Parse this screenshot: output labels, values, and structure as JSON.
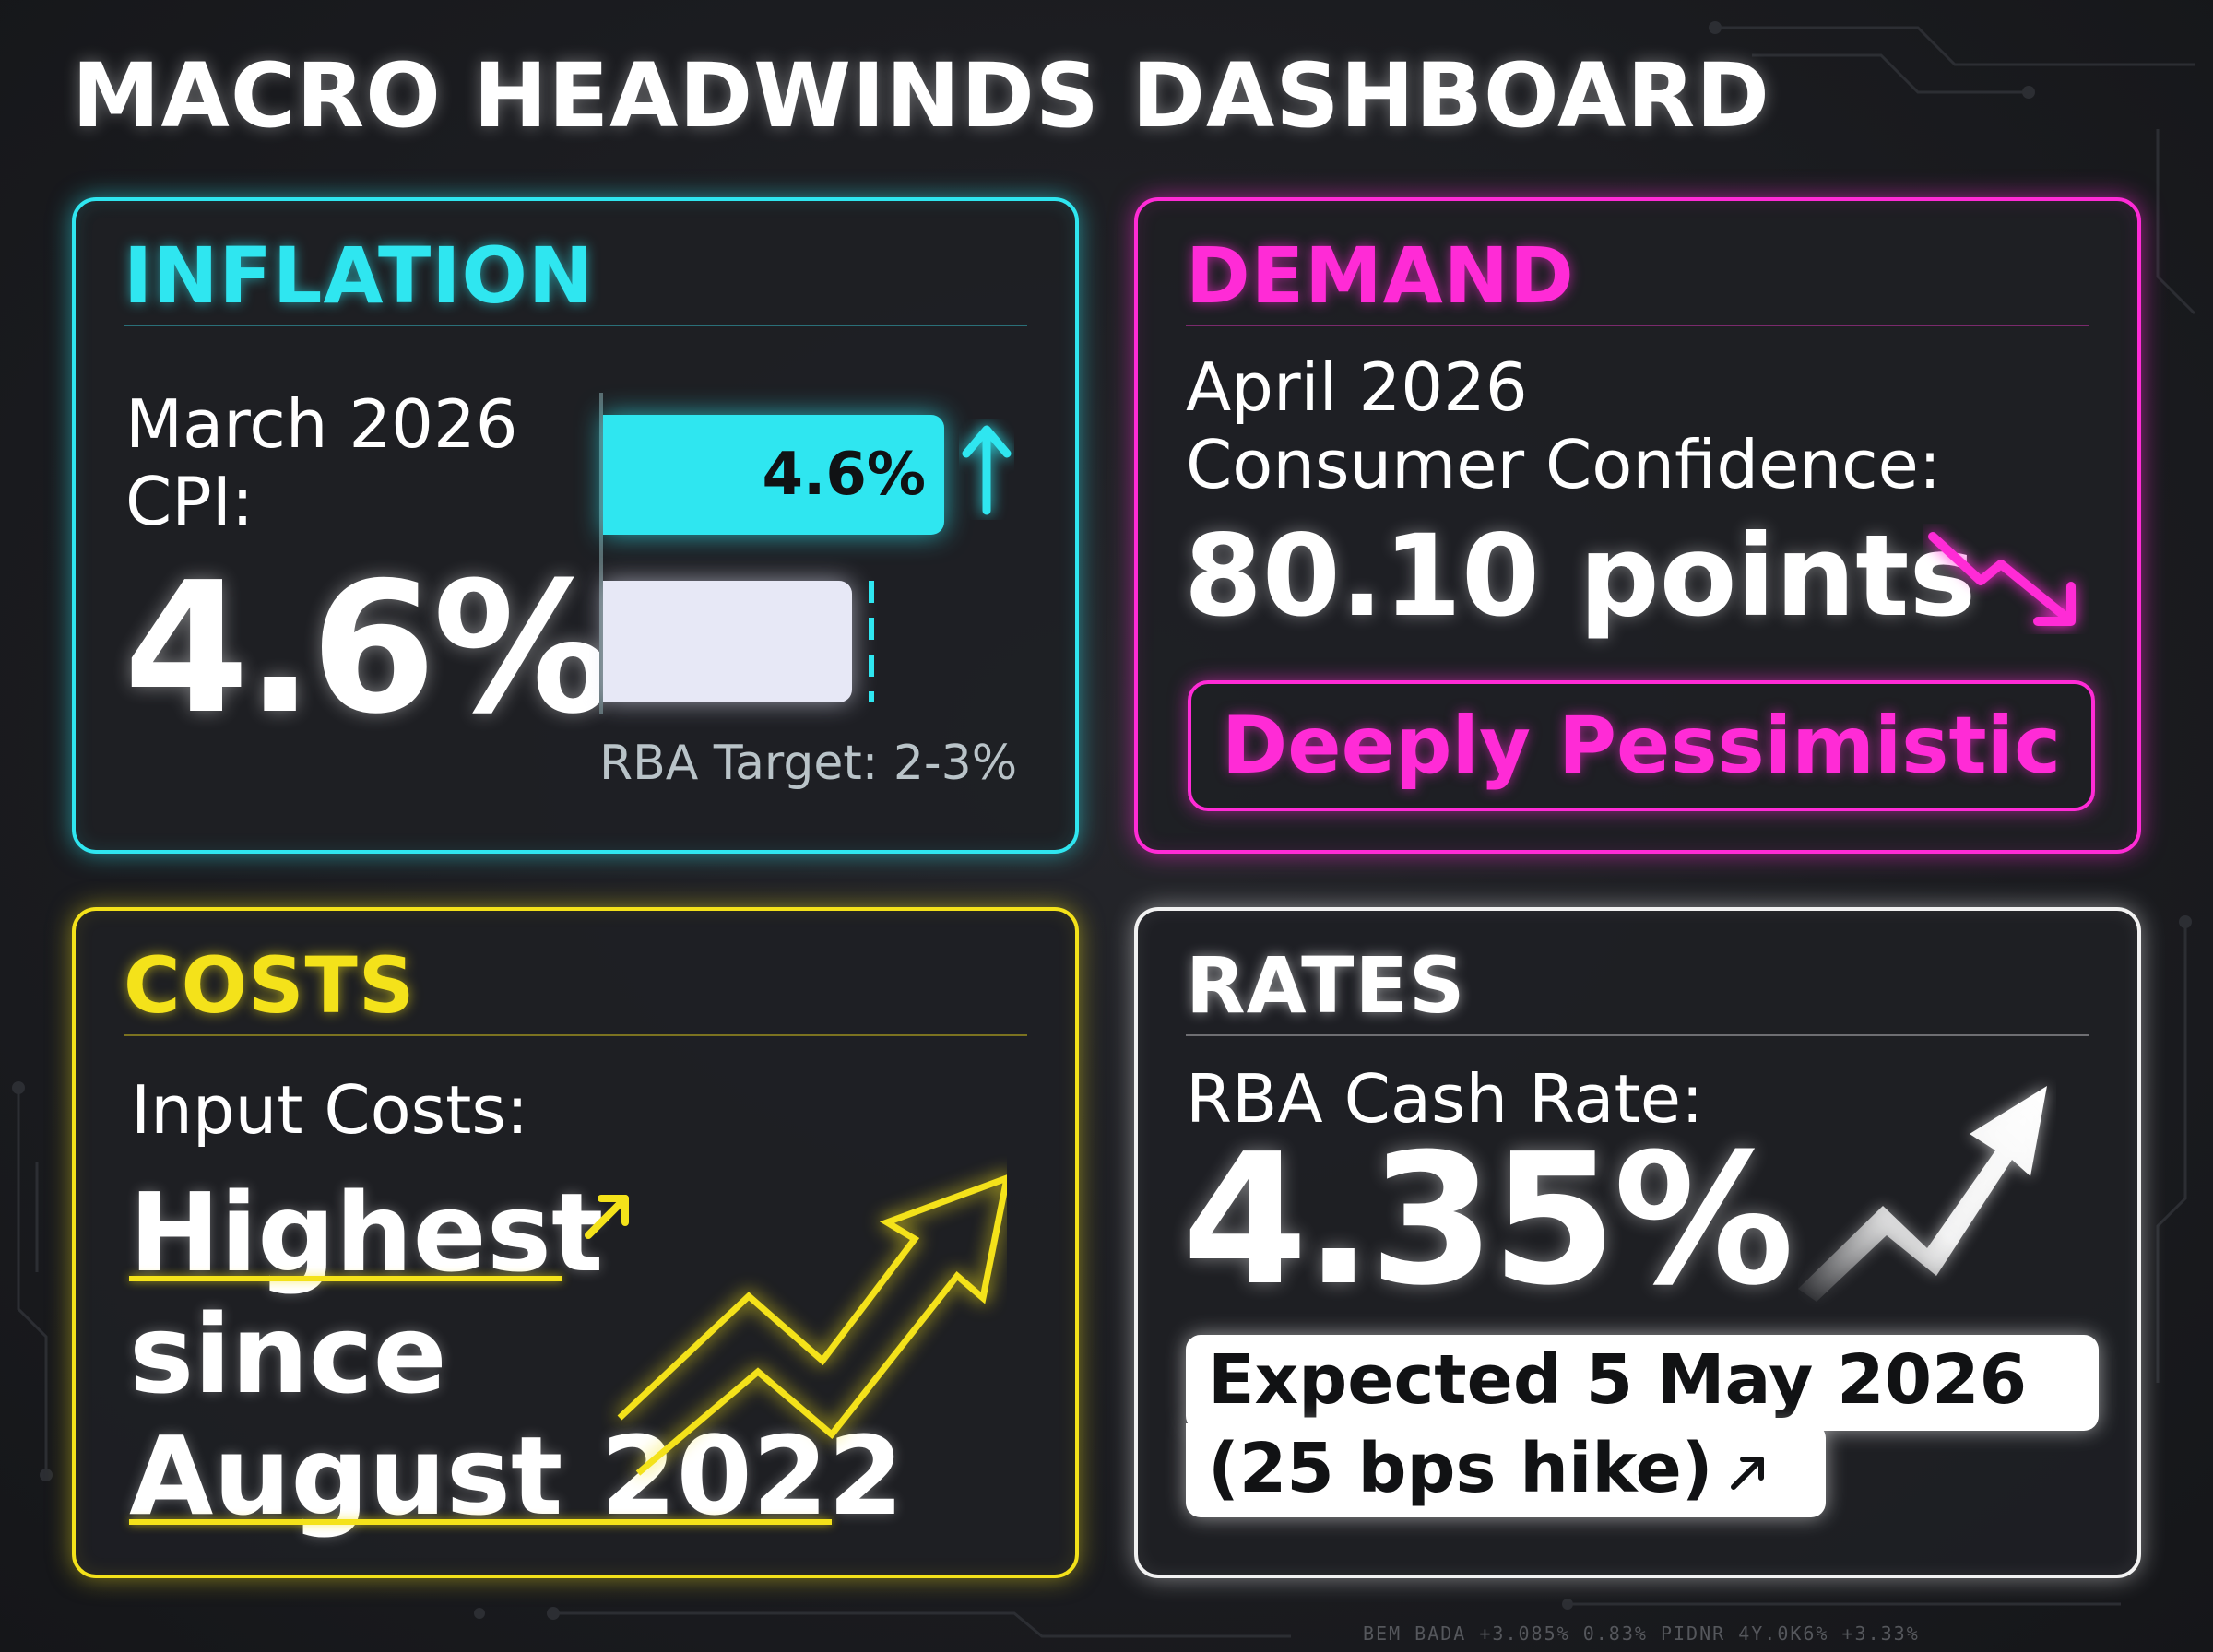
{
  "title": "MACRO HEADWINDS DASHBOARD",
  "colors": {
    "inflation": "#2fe6f0",
    "demand": "#ff2bd6",
    "costs": "#f4e21a",
    "rates": "#ffffff",
    "background": "#1b1c20"
  },
  "inflation": {
    "title": "INFLATION",
    "label_line1": "March 2026",
    "label_line2": "CPI:",
    "value": "4.6%",
    "bar_label": "4.6%",
    "cpi_value": 4.6,
    "target_label": "RBA Target: 2-3%",
    "target_range": [
      2,
      3
    ],
    "trend_icon": "arrow-up-icon"
  },
  "demand": {
    "title": "DEMAND",
    "label_line1": "April 2026",
    "label_line2": "Consumer Confidence:",
    "value": "80.10 points",
    "trend_icon": "arrow-down-icon",
    "sentiment": "Deeply Pessimistic"
  },
  "costs": {
    "title": "COSTS",
    "label": "Input Costs:",
    "line1": "Highest",
    "line2": "since",
    "line3": "August 2022",
    "trend_icon": "zigzag-up-arrow-icon"
  },
  "rates": {
    "title": "RATES",
    "label": "RBA Cash Rate:",
    "value": "4.35%",
    "expectation_line1": "Expected 5 May 2026",
    "expectation_line2": "(25 bps hike)",
    "trend_icon": "zigzag-up-arrow-icon"
  },
  "ticker": "BEM  BADA  +3.085%  0.83%  PIDNR  4Y.0K6%  +3.33%"
}
